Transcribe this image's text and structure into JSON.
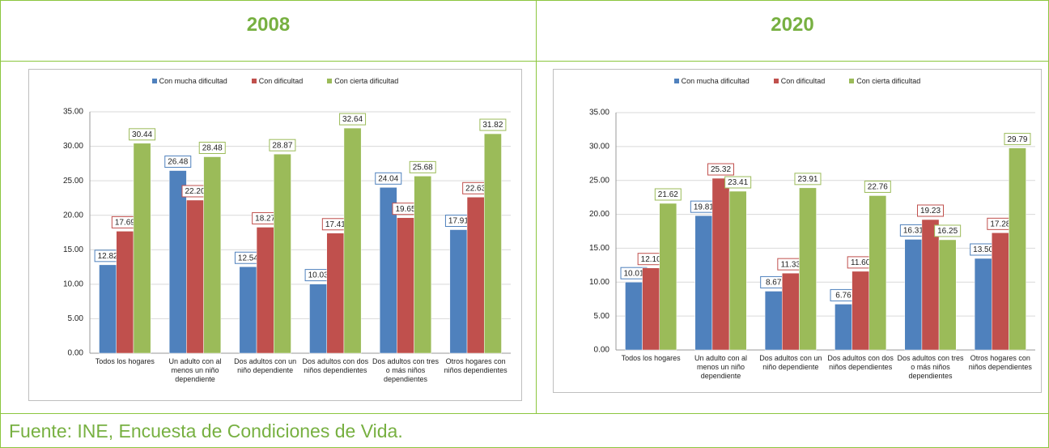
{
  "headers": [
    "2008",
    "2020"
  ],
  "source": "Fuente: INE, Encuesta de Condiciones de Vida.",
  "chart_data": [
    {
      "type": "bar",
      "categories": [
        "Todos los hogares",
        "Un adulto con al menos un niño dependiente",
        "Dos adultos con un niño dependiente",
        "Dos adultos con dos niños dependientes",
        "Dos adultos con tres o más niños dependientes",
        "Otros hogares con niños dependientes"
      ],
      "series": [
        {
          "name": "Con mucha dificultad",
          "color": "#4f81bd",
          "values": [
            12.82,
            26.48,
            12.54,
            10.03,
            24.04,
            17.91
          ],
          "value_labels": [
            "12.82",
            "26.48",
            "12.54",
            "10.03",
            "24.04",
            "17.91"
          ]
        },
        {
          "name": "Con dificultad",
          "color": "#c0504d",
          "values": [
            17.69,
            22.2,
            18.27,
            17.41,
            19.65,
            22.63
          ],
          "value_labels": [
            "17.69",
            "22.20",
            "18.27",
            "17.41",
            "19.65",
            "22.63"
          ]
        },
        {
          "name": "Con cierta dificultad",
          "color": "#9bbb59",
          "values": [
            30.44,
            28.48,
            28.87,
            32.64,
            25.68,
            31.82
          ],
          "value_labels": [
            "30.44",
            "28.48",
            "28.87",
            "32.64",
            "25.68",
            "31.82"
          ]
        }
      ],
      "ylim": [
        0,
        35
      ],
      "yticks": [
        {
          "value": 0,
          "label": "0.00"
        },
        {
          "value": 5,
          "label": "5.00"
        },
        {
          "value": 10,
          "label": "10.00"
        },
        {
          "value": 15,
          "label": "15.00"
        },
        {
          "value": 20,
          "label": "20.00"
        },
        {
          "value": 25,
          "label": "25.00"
        },
        {
          "value": 30,
          "label": "30.00"
        },
        {
          "value": 35,
          "label": "35.00"
        }
      ],
      "grid": true,
      "legend": "top"
    },
    {
      "type": "bar",
      "categories": [
        "Todos los hogares",
        "Un adulto con al menos un niño dependiente",
        "Dos adultos con un niño dependiente",
        "Dos adultos con dos niños dependientes",
        "Dos adultos con tres o más niños dependientes",
        "Otros hogares con niños dependientes"
      ],
      "series": [
        {
          "name": "Con mucha dificultad",
          "color": "#4f81bd",
          "values": [
            10.01,
            19.81,
            8.67,
            6.76,
            16.31,
            13.5
          ],
          "value_labels": [
            "10.01",
            "19.81",
            "8.67",
            "6.76",
            "16.31",
            "13.50"
          ]
        },
        {
          "name": "Con dificultad",
          "color": "#c0504d",
          "values": [
            12.1,
            25.32,
            11.33,
            11.6,
            19.23,
            17.28
          ],
          "value_labels": [
            "12.10",
            "25.32",
            "11.33",
            "11.60",
            "19.23",
            "17.28"
          ]
        },
        {
          "name": "Con cierta dificultad",
          "color": "#9bbb59",
          "values": [
            21.62,
            23.41,
            23.91,
            22.76,
            16.25,
            29.79
          ],
          "value_labels": [
            "21.62",
            "23.41",
            "23.91",
            "22.76",
            "16.25",
            "29.79"
          ]
        }
      ],
      "ylim": [
        0,
        35
      ],
      "yticks": [
        {
          "value": 0,
          "label": "0.00"
        },
        {
          "value": 5,
          "label": "5.00"
        },
        {
          "value": 10,
          "label": "10.00"
        },
        {
          "value": 15,
          "label": "15.00"
        },
        {
          "value": 20,
          "label": "20.00"
        },
        {
          "value": 25,
          "label": "25.00"
        },
        {
          "value": 30,
          "label": "30.00"
        },
        {
          "value": 35,
          "label": "35.00"
        }
      ],
      "grid": true,
      "legend": "top"
    }
  ]
}
